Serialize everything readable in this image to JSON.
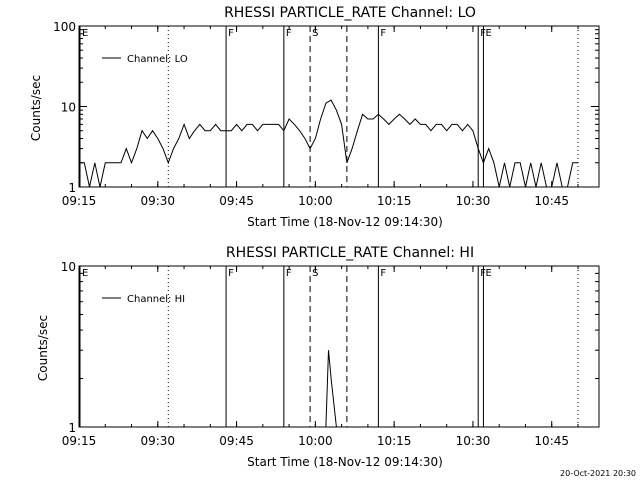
{
  "footer": {
    "timestamp": "20-Oct-2021 20:30"
  },
  "chart_data": [
    {
      "type": "line",
      "title": "RHESSI PARTICLE_RATE Channel: LO",
      "xlabel": "Start Time (18-Nov-12 09:14:30)",
      "ylabel": "Counts/sec",
      "xscale": "time",
      "yscale": "log",
      "xlim": [
        "09:15",
        "10:54"
      ],
      "ylim": [
        1,
        100
      ],
      "xtick_labels": [
        "09:15",
        "09:30",
        "09:45",
        "10:00",
        "10:15",
        "10:30",
        "10:45"
      ],
      "ytick_labels": [
        "1",
        "10",
        "100"
      ],
      "legend": {
        "position": "top-left",
        "entries": [
          "Channel: LO"
        ]
      },
      "grid": false,
      "line_color": "#000000",
      "markers": [
        {
          "label": "E",
          "time": "09:15",
          "style": "solid-edge"
        },
        {
          "label": "",
          "time": "09:32",
          "style": "dotted"
        },
        {
          "label": "F",
          "time": "09:43",
          "style": "solid"
        },
        {
          "label": "F",
          "time": "09:54",
          "style": "solid"
        },
        {
          "label": "S",
          "time": "09:59",
          "style": "dashed"
        },
        {
          "label": "",
          "time": "10:06",
          "style": "dashed"
        },
        {
          "label": "F",
          "time": "10:12",
          "style": "solid"
        },
        {
          "label": "F",
          "time": "10:31",
          "style": "solid"
        },
        {
          "label": "E",
          "time": "10:32",
          "style": "solid"
        },
        {
          "label": "",
          "time": "10:50",
          "style": "dotted"
        }
      ],
      "series": [
        {
          "name": "Channel: LO",
          "x": [
            "09:15",
            "09:16",
            "09:17",
            "09:18",
            "09:19",
            "09:20",
            "09:21",
            "09:22",
            "09:23",
            "09:24",
            "09:25",
            "09:26",
            "09:27",
            "09:28",
            "09:29",
            "09:30",
            "09:31",
            "09:32",
            "09:33",
            "09:34",
            "09:35",
            "09:36",
            "09:37",
            "09:38",
            "09:39",
            "09:40",
            "09:41",
            "09:42",
            "09:43",
            "09:44",
            "09:45",
            "09:46",
            "09:47",
            "09:48",
            "09:49",
            "09:50",
            "09:51",
            "09:52",
            "09:53",
            "09:54",
            "09:55",
            "09:56",
            "09:57",
            "09:58",
            "09:59",
            "10:00",
            "10:01",
            "10:02",
            "10:03",
            "10:04",
            "10:05",
            "10:06",
            "10:07",
            "10:08",
            "10:09",
            "10:10",
            "10:11",
            "10:12",
            "10:13",
            "10:14",
            "10:15",
            "10:16",
            "10:17",
            "10:18",
            "10:19",
            "10:20",
            "10:21",
            "10:22",
            "10:23",
            "10:24",
            "10:25",
            "10:26",
            "10:27",
            "10:28",
            "10:29",
            "10:30",
            "10:31",
            "10:32",
            "10:33",
            "10:34",
            "10:35",
            "10:36",
            "10:37",
            "10:38",
            "10:39",
            "10:40",
            "10:41",
            "10:42",
            "10:43",
            "10:44",
            "10:45",
            "10:46",
            "10:47",
            "10:48",
            "10:49",
            "10:50"
          ],
          "values": [
            2,
            2,
            1,
            2,
            1,
            2,
            2,
            2,
            2,
            3,
            2,
            3,
            5,
            4,
            5,
            4,
            3,
            2,
            3,
            4,
            6,
            4,
            5,
            6,
            5,
            5,
            6,
            5,
            5,
            5,
            6,
            5,
            6,
            6,
            5,
            6,
            6,
            6,
            6,
            5,
            7,
            6,
            5,
            4,
            3,
            4,
            7,
            11,
            12,
            9,
            6,
            2,
            3,
            5,
            8,
            7,
            7,
            8,
            7,
            6,
            7,
            8,
            7,
            6,
            7,
            6,
            6,
            5,
            6,
            6,
            5,
            6,
            6,
            5,
            6,
            5,
            3,
            2,
            3,
            2,
            1,
            2,
            1,
            2,
            2,
            1,
            2,
            1,
            2,
            1,
            1,
            2,
            1,
            1,
            2,
            2
          ]
        }
      ]
    },
    {
      "type": "line",
      "title": "RHESSI PARTICLE_RATE Channel: HI",
      "xlabel": "Start Time (18-Nov-12 09:14:30)",
      "ylabel": "Counts/sec",
      "xscale": "time",
      "yscale": "log",
      "xlim": [
        "09:15",
        "10:54"
      ],
      "ylim": [
        1,
        10
      ],
      "xtick_labels": [
        "09:15",
        "09:30",
        "09:45",
        "10:00",
        "10:15",
        "10:30",
        "10:45"
      ],
      "ytick_labels": [
        "1",
        "10"
      ],
      "legend": {
        "position": "top-left",
        "entries": [
          "Channel: HI"
        ]
      },
      "grid": false,
      "line_color": "#000000",
      "markers": [
        {
          "label": "E",
          "time": "09:15",
          "style": "solid-edge"
        },
        {
          "label": "",
          "time": "09:32",
          "style": "dotted"
        },
        {
          "label": "F",
          "time": "09:43",
          "style": "solid"
        },
        {
          "label": "F",
          "time": "09:54",
          "style": "solid"
        },
        {
          "label": "S",
          "time": "09:59",
          "style": "dashed"
        },
        {
          "label": "",
          "time": "10:06",
          "style": "dashed"
        },
        {
          "label": "F",
          "time": "10:12",
          "style": "solid"
        },
        {
          "label": "F",
          "time": "10:31",
          "style": "solid"
        },
        {
          "label": "E",
          "time": "10:32",
          "style": "solid"
        },
        {
          "label": "",
          "time": "10:50",
          "style": "dotted"
        }
      ],
      "series": [
        {
          "name": "Channel: HI",
          "x": [
            "10:02",
            "10:02.5",
            "10:03",
            "10:04"
          ],
          "values": [
            1,
            3,
            2,
            1
          ]
        }
      ]
    }
  ]
}
